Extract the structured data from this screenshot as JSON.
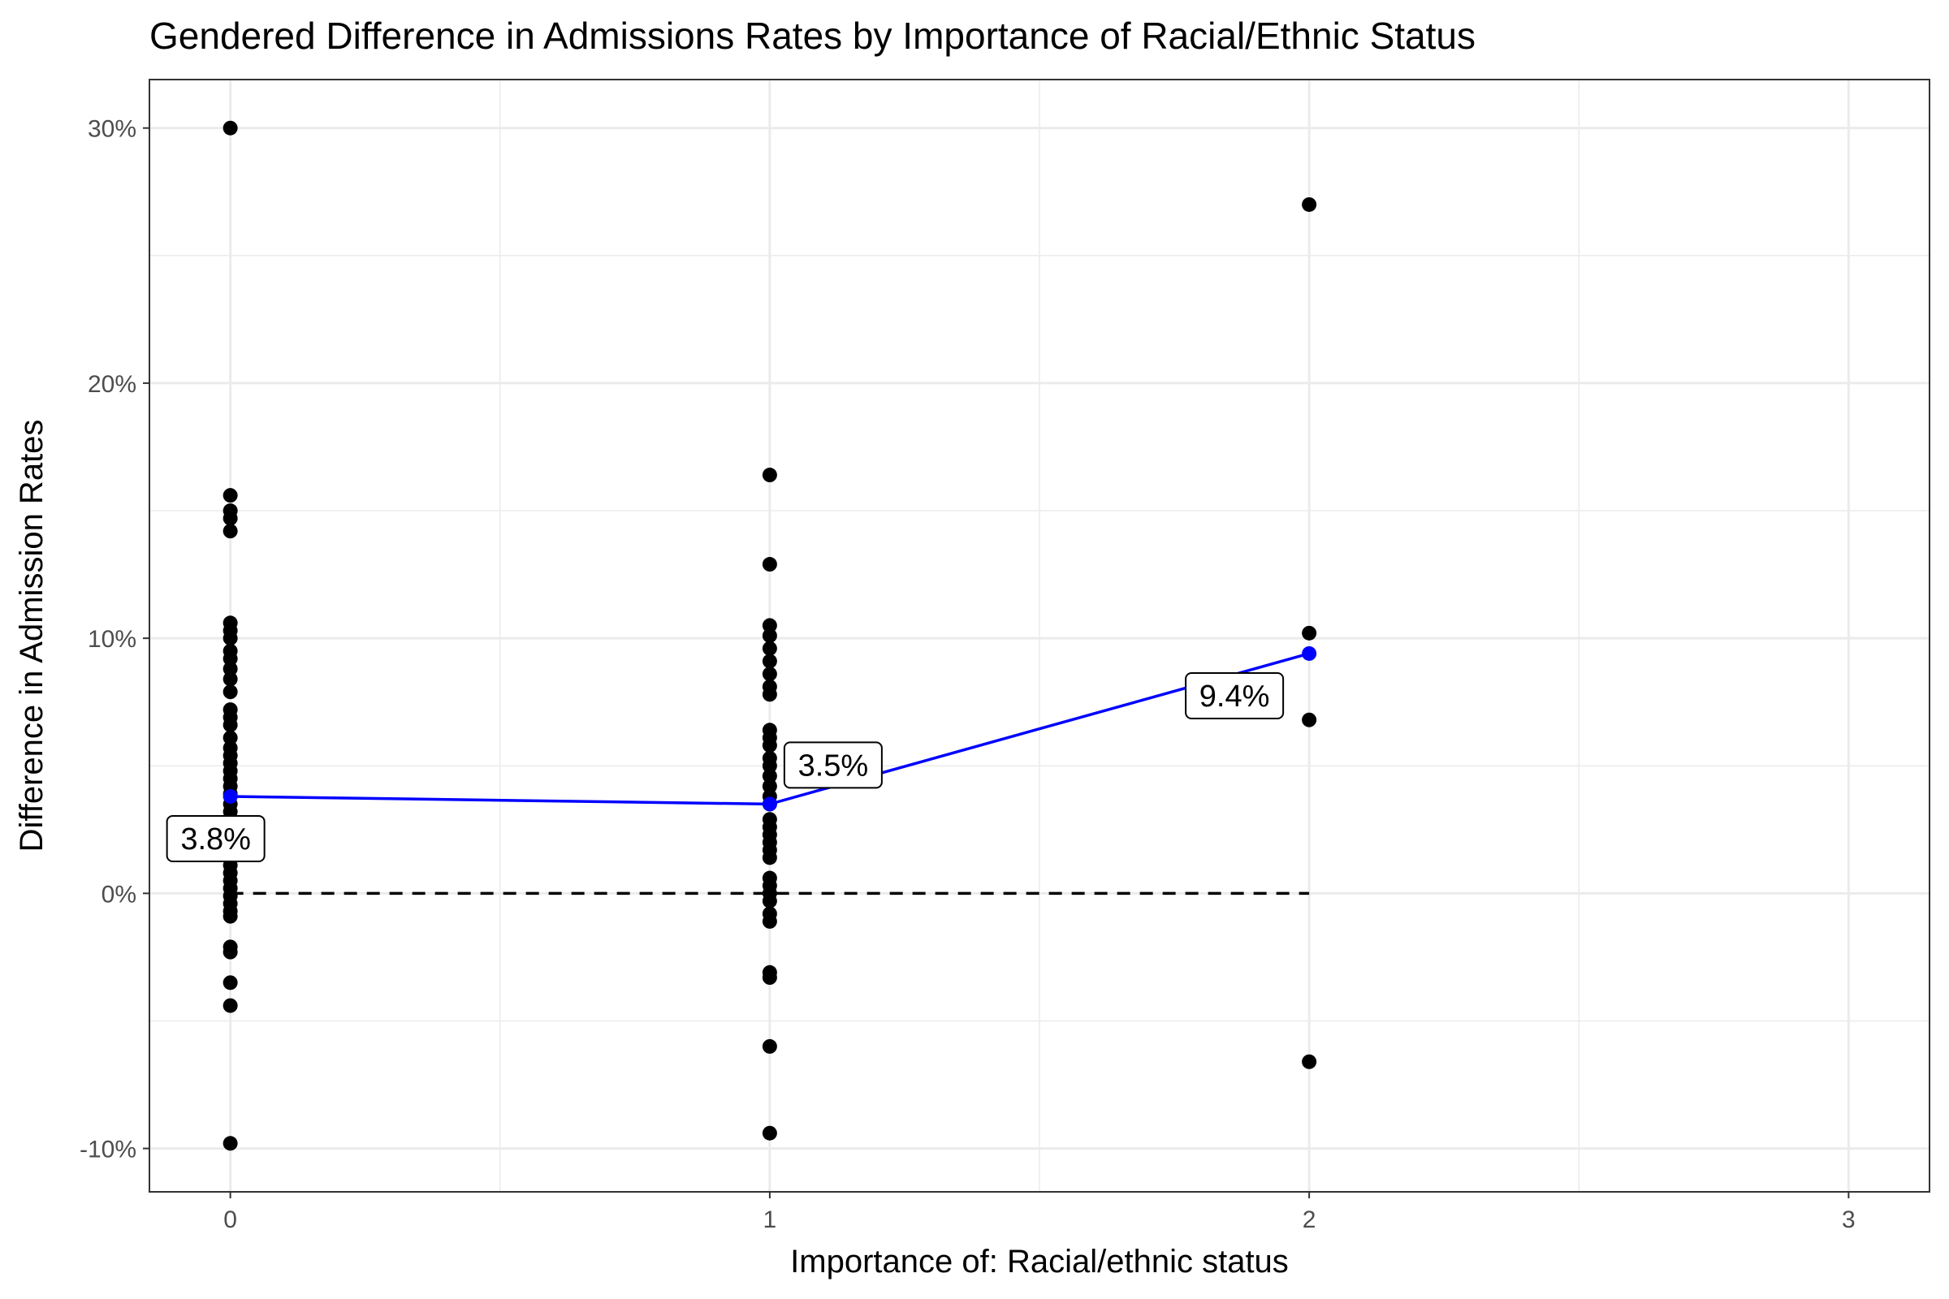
{
  "chart_data": {
    "type": "scatter",
    "title": "Gendered Difference in Admissions Rates by Importance of Racial/Ethnic Status",
    "xlabel": "Importance of: Racial/ethnic status",
    "ylabel": "Difference in Admission Rates",
    "xlim": [
      -0.15,
      3.15
    ],
    "ylim": [
      -11.7,
      31.9
    ],
    "x_ticks": [
      0,
      1,
      2,
      3
    ],
    "x_tick_labels": [
      "0",
      "1",
      "2",
      "3"
    ],
    "y_ticks": [
      -10,
      0,
      10,
      20,
      30
    ],
    "y_tick_labels": [
      "-10%",
      "0%",
      "10%",
      "20%",
      "30%"
    ],
    "grid": true,
    "reference_line": {
      "y": 0,
      "x_range": [
        0,
        2
      ],
      "style": "dashed",
      "color": "#000000"
    },
    "series": [
      {
        "type": "scatter",
        "color": "#000000",
        "points": [
          [
            0,
            30.0
          ],
          [
            0,
            15.6
          ],
          [
            0,
            15.0
          ],
          [
            0,
            14.7
          ],
          [
            0,
            14.2
          ],
          [
            0,
            10.6
          ],
          [
            0,
            10.3
          ],
          [
            0,
            10.0
          ],
          [
            0,
            9.5
          ],
          [
            0,
            9.2
          ],
          [
            0,
            8.8
          ],
          [
            0,
            8.4
          ],
          [
            0,
            7.9
          ],
          [
            0,
            7.2
          ],
          [
            0,
            6.9
          ],
          [
            0,
            6.6
          ],
          [
            0,
            6.1
          ],
          [
            0,
            5.7
          ],
          [
            0,
            5.4
          ],
          [
            0,
            5.1
          ],
          [
            0,
            4.8
          ],
          [
            0,
            4.5
          ],
          [
            0,
            4.2
          ],
          [
            0,
            3.9
          ],
          [
            0,
            3.5
          ],
          [
            0,
            3.2
          ],
          [
            0,
            2.9
          ],
          [
            0,
            2.6
          ],
          [
            0,
            2.3
          ],
          [
            0,
            2.0
          ],
          [
            0,
            1.7
          ],
          [
            0,
            1.4
          ],
          [
            0,
            1.1
          ],
          [
            0,
            0.8
          ],
          [
            0,
            0.5
          ],
          [
            0,
            0.2
          ],
          [
            0,
            -0.1
          ],
          [
            0,
            -0.4
          ],
          [
            0,
            -0.7
          ],
          [
            0,
            -0.9
          ],
          [
            0,
            -2.1
          ],
          [
            0,
            -2.3
          ],
          [
            0,
            -3.5
          ],
          [
            0,
            -4.4
          ],
          [
            0,
            -9.8
          ],
          [
            1,
            16.4
          ],
          [
            1,
            12.9
          ],
          [
            1,
            10.5
          ],
          [
            1,
            10.1
          ],
          [
            1,
            9.6
          ],
          [
            1,
            9.1
          ],
          [
            1,
            8.6
          ],
          [
            1,
            8.1
          ],
          [
            1,
            7.8
          ],
          [
            1,
            6.4
          ],
          [
            1,
            6.1
          ],
          [
            1,
            5.8
          ],
          [
            1,
            5.3
          ],
          [
            1,
            5.0
          ],
          [
            1,
            4.6
          ],
          [
            1,
            4.2
          ],
          [
            1,
            3.8
          ],
          [
            1,
            3.5
          ],
          [
            1,
            2.9
          ],
          [
            1,
            2.6
          ],
          [
            1,
            2.3
          ],
          [
            1,
            2.0
          ],
          [
            1,
            1.7
          ],
          [
            1,
            1.4
          ],
          [
            1,
            0.6
          ],
          [
            1,
            0.3
          ],
          [
            1,
            0.0
          ],
          [
            1,
            -0.3
          ],
          [
            1,
            -0.8
          ],
          [
            1,
            -1.1
          ],
          [
            1,
            -3.1
          ],
          [
            1,
            -3.3
          ],
          [
            1,
            -6.0
          ],
          [
            1,
            -9.4
          ],
          [
            2,
            27.0
          ],
          [
            2,
            10.2
          ],
          [
            2,
            6.8
          ],
          [
            2,
            -6.6
          ]
        ]
      },
      {
        "type": "line",
        "name": "",
        "color": "#0000ff",
        "x": [
          0,
          1,
          2
        ],
        "y": [
          3.8,
          3.5,
          9.4
        ],
        "labels": [
          "3.8%",
          "3.5%",
          "9.4%"
        ]
      }
    ]
  }
}
